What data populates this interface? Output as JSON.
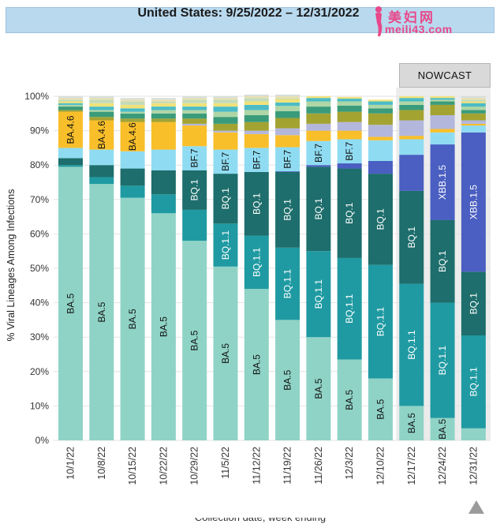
{
  "title": "United States: 9/25/2022 – 12/31/2022",
  "watermark": {
    "cn": "美妇网",
    "url": "meili43.com"
  },
  "nowcast_label": "NOWCAST",
  "colors": {
    "BA.5": "#8fd3c6",
    "BQ.1.1": "#1f9aa2",
    "BQ.1": "#1d6e6c",
    "XBB.1.5": "#4a5fc1",
    "BF.7": "#8fdcf2",
    "BA.4.6": "#f9bf2a",
    "other": [
      "#b3b7dc",
      "#a3a332",
      "#3a9b7a",
      "#aed6a6",
      "#4bbcc6",
      "#f0e27a",
      "#c3dbb9",
      "#e9e0b2",
      "#d7ded9"
    ]
  },
  "chart_data": {
    "type": "bar",
    "stacked": true,
    "ylabel": "% Viral Lineages Among Infections",
    "xlabel": "Collection date, week ending",
    "ylim": [
      0,
      100
    ],
    "yticks": [
      "0%",
      "10%",
      "20%",
      "30%",
      "40%",
      "50%",
      "60%",
      "70%",
      "80%",
      "90%",
      "100%"
    ],
    "categories": [
      "10/1/22",
      "10/8/22",
      "10/15/22",
      "10/22/22",
      "10/29/22",
      "11/5/22",
      "11/12/22",
      "11/19/22",
      "11/26/22",
      "12/3/22",
      "12/10/22",
      "12/17/22",
      "12/24/22",
      "12/31/22"
    ],
    "nowcast_from_index": 11,
    "series": [
      {
        "name": "BA.5",
        "values": [
          79.5,
          74.5,
          70.5,
          66,
          58,
          50.5,
          44,
          35,
          30,
          23.5,
          18,
          10,
          6.5,
          3.5
        ]
      },
      {
        "name": "BQ.1.1",
        "values": [
          0.5,
          2,
          3.5,
          5.5,
          9,
          12.5,
          15.5,
          21,
          25,
          29.5,
          33,
          35.5,
          33.5,
          27
        ]
      },
      {
        "name": "BQ.1",
        "values": [
          2,
          3.5,
          5,
          7,
          11.5,
          14.5,
          18.5,
          22,
          24.5,
          26,
          26.5,
          27,
          24,
          18.5
        ]
      },
      {
        "name": "XBB.1.5",
        "values": [
          0,
          0,
          0,
          0,
          0,
          0,
          0,
          0.2,
          0.5,
          1.5,
          3.7,
          10.5,
          22,
          40.5
        ]
      },
      {
        "name": "BF.7",
        "values": [
          3,
          4.5,
          5,
          6,
          7,
          7,
          7,
          7,
          7,
          7,
          6,
          4.5,
          3.5,
          2
        ]
      },
      {
        "name": "BA.4.6",
        "values": [
          10.5,
          8.5,
          8.5,
          8,
          6,
          5,
          4,
          3.5,
          3,
          2.5,
          1,
          1,
          1,
          0.5
        ]
      },
      {
        "name": "",
        "values": [
          0,
          0,
          0,
          0,
          0.5,
          0.5,
          1,
          2,
          2,
          2.5,
          3.5,
          4.5,
          4,
          1
        ]
      },
      {
        "name": "",
        "values": [
          0.5,
          1,
          1,
          1,
          1.5,
          2,
          2.5,
          3,
          3,
          3,
          3.3,
          3,
          3,
          2
        ]
      },
      {
        "name": "",
        "values": [
          1,
          1.5,
          1.5,
          1.5,
          1.5,
          2,
          2,
          2,
          2,
          1.8,
          1.5,
          1.5,
          1,
          1
        ]
      },
      {
        "name": "",
        "values": [
          0.5,
          0.5,
          0.5,
          1,
          1,
          1.5,
          1.5,
          1.5,
          1.5,
          1.2,
          1,
          1,
          0.5,
          1
        ]
      },
      {
        "name": "",
        "values": [
          0.5,
          1,
          1,
          1,
          1,
          1.5,
          1.5,
          1,
          1,
          0.8,
          1,
          1,
          0.5,
          1
        ]
      },
      {
        "name": "",
        "values": [
          0.5,
          1,
          1,
          1,
          1,
          1,
          1,
          1,
          0.5,
          0.5,
          0.5,
          0.5,
          0.5,
          0.5
        ]
      },
      {
        "name": "",
        "values": [
          0.5,
          1,
          1,
          0.5,
          1,
          1,
          1,
          0.3,
          0,
          0,
          0,
          0,
          0,
          0.5
        ]
      },
      {
        "name": "",
        "values": [
          0.5,
          0.5,
          0.5,
          0.5,
          0.5,
          0.5,
          0.5,
          0.5,
          0,
          0,
          0,
          0,
          0,
          0.5
        ]
      },
      {
        "name": "",
        "values": [
          0.5,
          0.5,
          0.5,
          0.5,
          0.5,
          0.5,
          0.5,
          0.5,
          0,
          0,
          0,
          0,
          0,
          0.5
        ]
      }
    ],
    "bar_labels": [
      [
        "BA.5",
        "",
        "",
        "",
        "",
        "BA.4.6"
      ],
      [
        "BA.5",
        "",
        "",
        "",
        "",
        "BA.4.6"
      ],
      [
        "BA.5",
        "",
        "",
        "",
        "",
        "BA.4.6"
      ],
      [
        "BA.5",
        "",
        "",
        "",
        "",
        ""
      ],
      [
        "BA.5",
        "",
        "BQ.1",
        "",
        "BF.7",
        ""
      ],
      [
        "BA.5",
        "BQ.1.1",
        "BQ.1",
        "",
        "BF.7",
        ""
      ],
      [
        "BA.5",
        "BQ.1.1",
        "BQ.1",
        "",
        "BF.7",
        ""
      ],
      [
        "BA.5",
        "BQ.1.1",
        "BQ.1",
        "",
        "BF.7",
        ""
      ],
      [
        "BA.5",
        "BQ.1.1",
        "BQ.1",
        "",
        "BF.7",
        ""
      ],
      [
        "BA.5",
        "BQ.1.1",
        "BQ.1",
        "",
        "BF.7",
        ""
      ],
      [
        "BA.5",
        "BQ.1.1",
        "BQ.1",
        "",
        "",
        ""
      ],
      [
        "BA.5",
        "BQ.1.1",
        "BQ.1",
        "",
        "",
        ""
      ],
      [
        "BA.5",
        "BQ.1.1",
        "BQ.1",
        "XBB.1.5",
        "",
        ""
      ],
      [
        "",
        "BQ.1.1",
        "BQ.1",
        "XBB.1.5",
        "",
        ""
      ]
    ]
  }
}
